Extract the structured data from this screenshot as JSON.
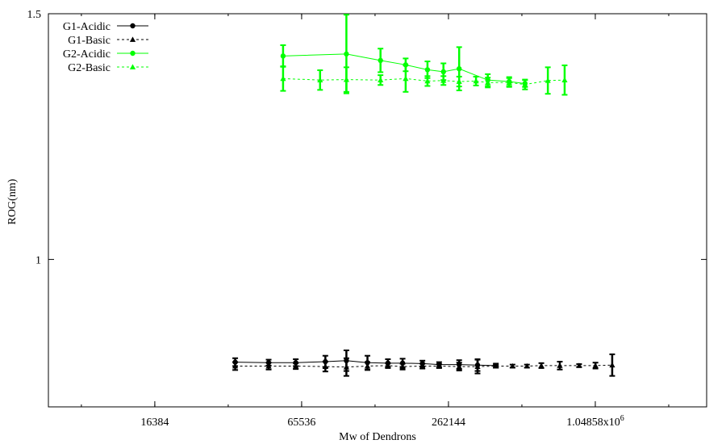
{
  "chart_data": {
    "type": "line",
    "title": "",
    "xlabel": "Mw of Dendrons",
    "ylabel": "ROG(nm)",
    "x_scale": "log2",
    "xlim": [
      6000,
      3000000
    ],
    "ylim": [
      0.7,
      1.5
    ],
    "x_ticks": [
      {
        "value": 16384,
        "label": "16384"
      },
      {
        "value": 65536,
        "label": "65536"
      },
      {
        "value": 262144,
        "label": "262144"
      },
      {
        "value": 1048576,
        "label": "1.04858x10",
        "sup": "6"
      }
    ],
    "y_ticks": [
      {
        "value": 1.0,
        "label": "1"
      },
      {
        "value": 1.5,
        "label": "1.5"
      }
    ],
    "grid": false,
    "legend_position": "top-left",
    "series": [
      {
        "name": "G1-Acidic",
        "color": "#000000",
        "dash": "solid",
        "marker": "circle",
        "x": [
          35000,
          48000,
          62000,
          82000,
          100000,
          122000,
          148000,
          170000,
          205000,
          240000,
          290000,
          345000,
          410000
        ],
        "y": [
          0.791,
          0.79,
          0.79,
          0.792,
          0.794,
          0.79,
          0.789,
          0.789,
          0.788,
          0.786,
          0.786,
          0.785,
          0.784
        ],
        "err": [
          0.008,
          0.006,
          0.007,
          0.012,
          0.021,
          0.014,
          0.008,
          0.009,
          0.006,
          0.005,
          0.009,
          0.012,
          0.004
        ]
      },
      {
        "name": "G1-Basic",
        "color": "#000000",
        "dash": "dashed",
        "marker": "triangle",
        "x": [
          35000,
          48000,
          62000,
          82000,
          100000,
          122000,
          148000,
          170000,
          205000,
          240000,
          290000,
          345000,
          410000,
          480000,
          550000,
          630000,
          750000,
          900000,
          1050000,
          1230000
        ],
        "y": [
          0.783,
          0.783,
          0.783,
          0.782,
          0.781,
          0.783,
          0.784,
          0.782,
          0.783,
          0.783,
          0.782,
          0.782,
          0.783,
          0.783,
          0.783,
          0.784,
          0.784,
          0.784,
          0.784,
          0.785
        ],
        "err": [
          0.008,
          0.007,
          0.006,
          0.01,
          0.018,
          0.008,
          0.005,
          0.006,
          0.005,
          0.004,
          0.008,
          0.014,
          0.003,
          0.003,
          0.003,
          0.005,
          0.008,
          0.003,
          0.006,
          0.022
        ]
      },
      {
        "name": "G2-Acidic",
        "color": "#00ff00",
        "dash": "solid",
        "marker": "circle",
        "x": [
          55000,
          100000,
          138000,
          175000,
          215000,
          250000,
          290000,
          380000,
          465000,
          540000
        ],
        "y": [
          1.414,
          1.418,
          1.405,
          1.396,
          1.386,
          1.382,
          1.388,
          1.365,
          1.362,
          1.358
        ],
        "err": [
          0.022,
          0.08,
          0.024,
          0.013,
          0.017,
          0.017,
          0.044,
          0.012,
          0.009,
          0.007
        ]
      },
      {
        "name": "G2-Basic",
        "color": "#00ff00",
        "dash": "dashed",
        "marker": "triangle",
        "x": [
          55000,
          78000,
          100000,
          138000,
          175000,
          215000,
          250000,
          290000,
          340000,
          380000,
          465000,
          540000,
          670000,
          785000
        ],
        "y": [
          1.368,
          1.365,
          1.366,
          1.365,
          1.368,
          1.363,
          1.364,
          1.362,
          1.363,
          1.36,
          1.36,
          1.356,
          1.364,
          1.365
        ],
        "err": [
          0.025,
          0.02,
          0.025,
          0.01,
          0.027,
          0.01,
          0.009,
          0.01,
          0.009,
          0.01,
          0.009,
          0.01,
          0.027,
          0.03
        ]
      }
    ]
  }
}
